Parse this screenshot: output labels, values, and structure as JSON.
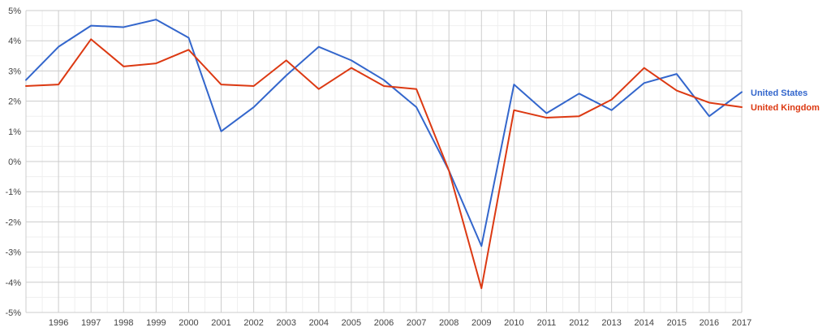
{
  "chart_data": {
    "type": "line",
    "title": "",
    "xlabel": "",
    "ylabel": "",
    "x": [
      1995,
      1996,
      1997,
      1998,
      1999,
      2000,
      2001,
      2002,
      2003,
      2004,
      2005,
      2006,
      2007,
      2008,
      2009,
      2010,
      2011,
      2012,
      2013,
      2014,
      2015,
      2016,
      2017
    ],
    "x_tick_labels": [
      "1996",
      "1997",
      "1998",
      "1999",
      "2000",
      "2001",
      "2002",
      "2003",
      "2004",
      "2005",
      "2006",
      "2007",
      "2008",
      "2009",
      "2010",
      "2011",
      "2012",
      "2013",
      "2014",
      "2015",
      "2016",
      "2017"
    ],
    "y_tick_labels": [
      "5%",
      "4%",
      "3%",
      "2%",
      "1%",
      "0%",
      "-1%",
      "-2%",
      "-3%",
      "-4%",
      "-5%"
    ],
    "y_ticks": [
      5,
      4,
      3,
      2,
      1,
      0,
      -1,
      -2,
      -3,
      -4,
      -5
    ],
    "xlim": [
      1995,
      2017
    ],
    "ylim": [
      -5,
      5
    ],
    "grid": true,
    "minor_grid": true,
    "legend_position": "right",
    "series": [
      {
        "name": "United States",
        "color": "#3366cc",
        "values": [
          2.7,
          3.8,
          4.5,
          4.45,
          4.7,
          4.1,
          1.0,
          1.8,
          2.85,
          3.8,
          3.35,
          2.7,
          1.8,
          -0.3,
          -2.8,
          2.55,
          1.6,
          2.25,
          1.7,
          2.6,
          2.9,
          1.5,
          2.3
        ]
      },
      {
        "name": "United Kingdom",
        "color": "#dc3912",
        "values": [
          2.5,
          2.55,
          4.05,
          3.15,
          3.25,
          3.7,
          2.55,
          2.5,
          3.35,
          2.4,
          3.1,
          2.5,
          2.4,
          -0.3,
          -4.2,
          1.7,
          1.45,
          1.5,
          2.05,
          3.1,
          2.35,
          1.95,
          1.8
        ]
      }
    ]
  }
}
